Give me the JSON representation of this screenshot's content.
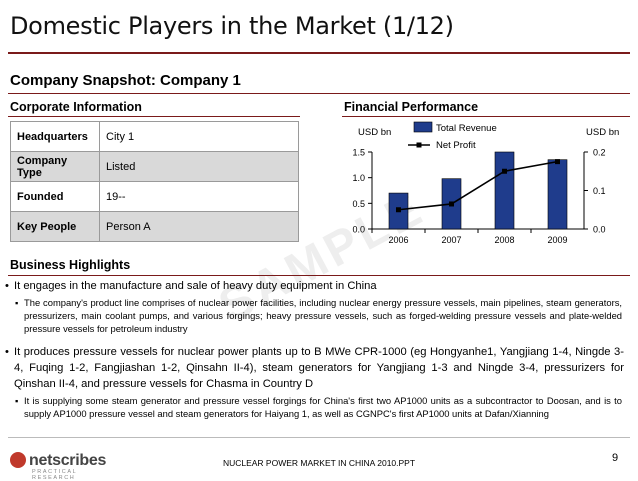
{
  "title": "Domestic Players in the Market (1/12)",
  "snapshot_title": "Company Snapshot: Company 1",
  "corporate": {
    "heading": "Corporate Information",
    "rows": [
      {
        "key": "Headquarters",
        "value": "City 1"
      },
      {
        "key": "Company Type",
        "value": "Listed"
      },
      {
        "key": "Founded",
        "value": "19--"
      },
      {
        "key": "Key People",
        "value": "Person A"
      }
    ]
  },
  "financial": {
    "heading": "Financial Performance"
  },
  "watermark": "SAMPLE",
  "chart_data": {
    "type": "bar",
    "categories": [
      "2006",
      "2007",
      "2008",
      "2009"
    ],
    "series": [
      {
        "name": "Total Revenue",
        "kind": "bar",
        "axis": "left",
        "values": [
          0.7,
          0.98,
          1.5,
          1.35
        ],
        "color": "#1f3c8c"
      },
      {
        "name": "Net Profit",
        "kind": "line",
        "axis": "right",
        "values": [
          0.05,
          0.065,
          0.15,
          0.175
        ],
        "color": "#000000"
      }
    ],
    "ylabel_left": "USD bn",
    "ylabel_right": "USD bn",
    "ylim_left": [
      0,
      1.5
    ],
    "ylim_right": [
      0,
      0.2
    ],
    "yticks_left": [
      "0.0",
      "0.5",
      "1.0",
      "1.5"
    ],
    "yticks_right": [
      "0.0",
      "0.1",
      "0.2"
    ],
    "legend": "top-center",
    "grid": false
  },
  "highlights": {
    "heading": "Business Highlights",
    "b1": "It engages in the manufacture and sale of heavy duty equipment in China",
    "b1a": "The company's product line comprises of nuclear power facilities, including nuclear energy pressure vessels, main pipelines, steam generators, pressurizers, main coolant pumps, and various forgings; heavy pressure vessels, such as forged-welding pressure vessels and plate-welded pressure vessels for petroleum industry",
    "b2": "It produces pressure vessels for nuclear power plants up to B MWe CPR-1000 (eg Hongyanhe1, Yangjiang 1-4, Ningde 3-4, Fuqing 1-2, Fangjiashan 1-2, Qinsahn II-4), steam generators for Yangjiang 1-3 and Ningde 3-4, pressurizers for Qinshan II-4, and pressure vessels for Chasma in Country D",
    "b2a": "It is supplying some steam generator and pressure vessel forgings for China's first two AP1000 units as a subcontractor to Doosan, and is to supply AP1000 pressure vessel and steam generators for Haiyang 1, as well as CGNPC's first AP1000 units at Dafan/Xianning"
  },
  "footer": {
    "logo": "netscribes",
    "logo_sub": "PRACTICAL RESEARCH",
    "center": "NUCLEAR POWER MARKET IN CHINA 2010.PPT",
    "page": "9"
  }
}
